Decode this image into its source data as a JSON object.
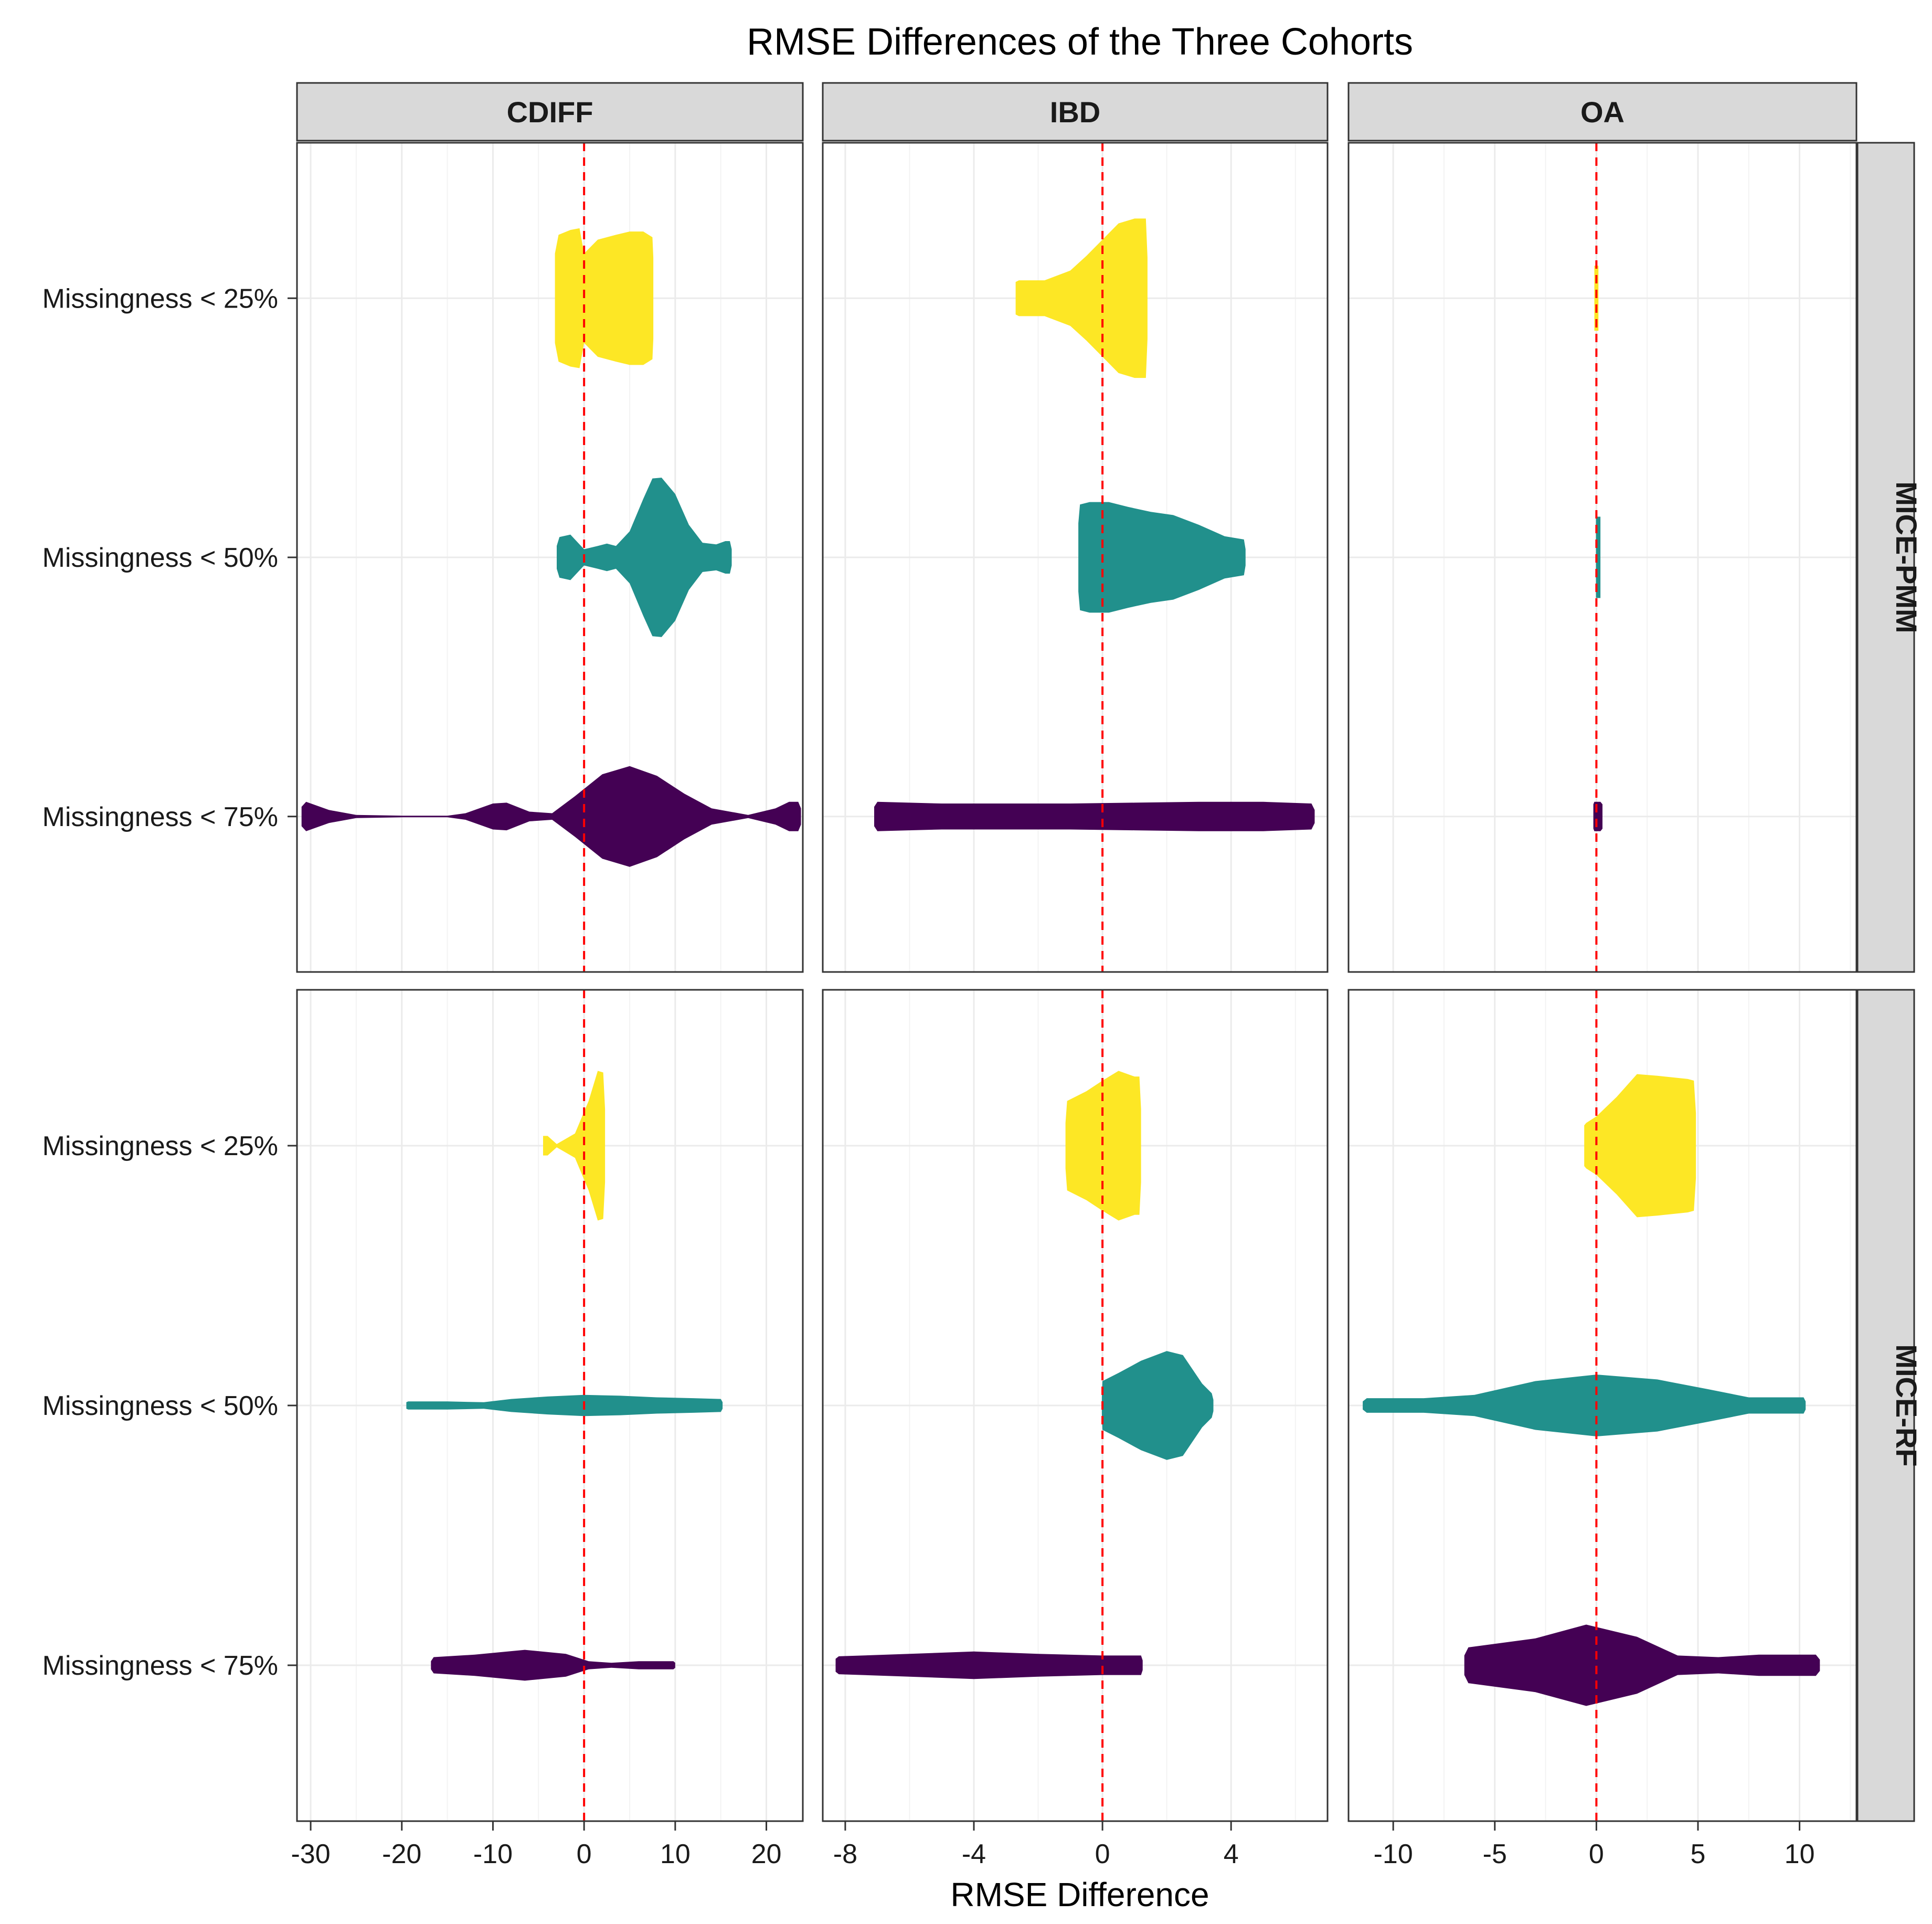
{
  "chart_data": {
    "type": "violin",
    "title": "RMSE Differences of the Three Cohorts",
    "xlabel": "RMSE Difference",
    "ylabel": "",
    "grid": true,
    "legend": "none",
    "reference_line": {
      "x": 0,
      "color": "#FF0000",
      "style": "dashed"
    },
    "categories": [
      "Missingness < 25%",
      "Missingness < 50%",
      "Missingness < 75%"
    ],
    "category_colors": [
      "#FDE725",
      "#21908C",
      "#440154"
    ],
    "col_facets": [
      {
        "name": "CDIFF",
        "xlim": [
          -31.5,
          24
        ],
        "ticks": [
          -30,
          -20,
          -10,
          0,
          10,
          20
        ],
        "tick_labels": [
          "-30",
          "-20",
          "-10",
          "0",
          "10",
          "20"
        ]
      },
      {
        "name": "IBD",
        "xlim": [
          -8.7,
          7.0
        ],
        "ticks": [
          -8,
          -4,
          0,
          4
        ],
        "tick_labels": [
          "-8",
          "-4",
          "0",
          "4"
        ]
      },
      {
        "name": "OA",
        "xlim": [
          -12.2,
          12.8
        ],
        "ticks": [
          -10,
          -5,
          0,
          5,
          10
        ],
        "tick_labels": [
          "-10",
          "-5",
          "0",
          "5",
          "10"
        ]
      }
    ],
    "row_facets": [
      "MICE-PMM",
      "MICE-RF"
    ],
    "panels": [
      {
        "row": "MICE-PMM",
        "col": "CDIFF",
        "violins": [
          {
            "category": "Missingness < 25%",
            "profile": [
              [
                -3.2,
                0.55
              ],
              [
                -2.8,
                0.78
              ],
              [
                -1.5,
                0.84
              ],
              [
                -0.5,
                0.86
              ],
              [
                0.0,
                0.55
              ],
              [
                1.5,
                0.72
              ],
              [
                3.5,
                0.78
              ],
              [
                5.0,
                0.82
              ],
              [
                6.5,
                0.82
              ],
              [
                7.5,
                0.75
              ],
              [
                7.6,
                0.5
              ]
            ]
          },
          {
            "category": "Missingness < 50%",
            "profile": [
              [
                -3.0,
                0.14
              ],
              [
                -2.7,
                0.25
              ],
              [
                -1.5,
                0.28
              ],
              [
                0.0,
                0.1
              ],
              [
                1.5,
                0.14
              ],
              [
                2.5,
                0.17
              ],
              [
                3.5,
                0.14
              ],
              [
                5.0,
                0.32
              ],
              [
                6.5,
                0.72
              ],
              [
                7.5,
                0.97
              ],
              [
                8.5,
                0.98
              ],
              [
                10.0,
                0.78
              ],
              [
                11.5,
                0.4
              ],
              [
                13.0,
                0.18
              ],
              [
                14.5,
                0.16
              ],
              [
                15.5,
                0.2
              ],
              [
                16.0,
                0.2
              ],
              [
                16.2,
                0.1
              ]
            ]
          },
          {
            "category": "Missingness < 75%",
            "profile": [
              [
                -31.0,
                0.12
              ],
              [
                -30.5,
                0.18
              ],
              [
                -28.0,
                0.08
              ],
              [
                -25.0,
                0.02
              ],
              [
                -20.0,
                0.01
              ],
              [
                -15.0,
                0.01
              ],
              [
                -13.0,
                0.04
              ],
              [
                -10.0,
                0.16
              ],
              [
                -8.5,
                0.17
              ],
              [
                -6.0,
                0.06
              ],
              [
                -3.5,
                0.04
              ],
              [
                -1.0,
                0.25
              ],
              [
                2.0,
                0.52
              ],
              [
                5.0,
                0.62
              ],
              [
                8.0,
                0.5
              ],
              [
                11.0,
                0.28
              ],
              [
                14.0,
                0.1
              ],
              [
                18.0,
                0.02
              ],
              [
                21.0,
                0.1
              ],
              [
                22.5,
                0.18
              ],
              [
                23.5,
                0.18
              ],
              [
                23.8,
                0.1
              ]
            ]
          }
        ]
      },
      {
        "row": "MICE-PMM",
        "col": "IBD",
        "violins": [
          {
            "category": "Missingness < 25%",
            "profile": [
              [
                -2.7,
                0.2
              ],
              [
                -2.6,
                0.22
              ],
              [
                -1.8,
                0.22
              ],
              [
                -1.0,
                0.34
              ],
              [
                -0.5,
                0.52
              ],
              [
                0.0,
                0.72
              ],
              [
                0.5,
                0.92
              ],
              [
                1.0,
                0.98
              ],
              [
                1.35,
                0.98
              ],
              [
                1.4,
                0.5
              ]
            ]
          },
          {
            "category": "Missingness < 50%",
            "profile": [
              [
                -0.75,
                0.42
              ],
              [
                -0.7,
                0.65
              ],
              [
                -0.4,
                0.68
              ],
              [
                0.2,
                0.68
              ],
              [
                0.8,
                0.62
              ],
              [
                1.5,
                0.56
              ],
              [
                2.2,
                0.52
              ],
              [
                3.0,
                0.4
              ],
              [
                3.8,
                0.26
              ],
              [
                4.4,
                0.22
              ],
              [
                4.45,
                0.1
              ]
            ]
          },
          {
            "category": "Missingness < 75%",
            "profile": [
              [
                -7.1,
                0.12
              ],
              [
                -7.0,
                0.18
              ],
              [
                -5.0,
                0.16
              ],
              [
                -3.0,
                0.16
              ],
              [
                -1.0,
                0.16
              ],
              [
                1.0,
                0.17
              ],
              [
                3.0,
                0.18
              ],
              [
                5.0,
                0.18
              ],
              [
                6.5,
                0.16
              ],
              [
                6.6,
                0.08
              ]
            ]
          }
        ]
      },
      {
        "row": "MICE-PMM",
        "col": "OA",
        "violins": [
          {
            "category": "Missingness < 25%",
            "profile": [
              [
                -0.1,
                0.4
              ],
              [
                0.1,
                0.4
              ]
            ]
          },
          {
            "category": "Missingness < 50%",
            "profile": [
              [
                -0.02,
                0.5
              ],
              [
                0.2,
                0.5
              ]
            ]
          },
          {
            "category": "Missingness < 75%",
            "profile": [
              [
                -0.15,
                0.15
              ],
              [
                -0.1,
                0.18
              ],
              [
                0.2,
                0.18
              ],
              [
                0.3,
                0.15
              ]
            ]
          }
        ]
      },
      {
        "row": "MICE-RF",
        "col": "CDIFF",
        "violins": [
          {
            "category": "Missingness < 25%",
            "profile": [
              [
                -4.5,
                0.12
              ],
              [
                -4.0,
                0.12
              ],
              [
                -3.0,
                0.02
              ],
              [
                -1.0,
                0.15
              ],
              [
                0.5,
                0.55
              ],
              [
                1.5,
                0.92
              ],
              [
                2.1,
                0.9
              ],
              [
                2.3,
                0.45
              ]
            ]
          },
          {
            "category": "Missingness < 50%",
            "profile": [
              [
                -19.5,
                0.04
              ],
              [
                -19.3,
                0.05
              ],
              [
                -15.0,
                0.05
              ],
              [
                -11.0,
                0.04
              ],
              [
                -8.0,
                0.08
              ],
              [
                -4.0,
                0.11
              ],
              [
                0.0,
                0.13
              ],
              [
                4.0,
                0.12
              ],
              [
                8.0,
                0.1
              ],
              [
                12.0,
                0.09
              ],
              [
                15.0,
                0.08
              ],
              [
                15.2,
                0.04
              ]
            ]
          },
          {
            "category": "Missingness < 75%",
            "profile": [
              [
                -16.8,
                0.05
              ],
              [
                -16.5,
                0.1
              ],
              [
                -12.0,
                0.13
              ],
              [
                -6.5,
                0.19
              ],
              [
                -2.0,
                0.14
              ],
              [
                0.5,
                0.05
              ],
              [
                3.0,
                0.03
              ],
              [
                6.0,
                0.05
              ],
              [
                9.8,
                0.05
              ],
              [
                10.0,
                0.03
              ]
            ]
          }
        ]
      },
      {
        "row": "MICE-RF",
        "col": "IBD",
        "violins": [
          {
            "category": "Missingness < 25%",
            "profile": [
              [
                -1.15,
                0.28
              ],
              [
                -1.1,
                0.55
              ],
              [
                -0.5,
                0.67
              ],
              [
                0.0,
                0.8
              ],
              [
                0.5,
                0.92
              ],
              [
                1.0,
                0.85
              ],
              [
                1.15,
                0.85
              ],
              [
                1.2,
                0.45
              ]
            ]
          },
          {
            "category": "Missingness < 50%",
            "profile": [
              [
                -0.02,
                0.1
              ],
              [
                0.0,
                0.3
              ],
              [
                0.5,
                0.4
              ],
              [
                1.2,
                0.55
              ],
              [
                2.0,
                0.67
              ],
              [
                2.5,
                0.62
              ],
              [
                3.1,
                0.27
              ],
              [
                3.4,
                0.15
              ],
              [
                3.45,
                0.07
              ]
            ]
          },
          {
            "category": "Missingness < 75%",
            "profile": [
              [
                -8.3,
                0.08
              ],
              [
                -8.2,
                0.11
              ],
              [
                -6.0,
                0.14
              ],
              [
                -4.0,
                0.17
              ],
              [
                -2.0,
                0.14
              ],
              [
                0.0,
                0.12
              ],
              [
                1.2,
                0.12
              ],
              [
                1.25,
                0.06
              ]
            ]
          }
        ]
      },
      {
        "row": "MICE-RF",
        "col": "OA",
        "violins": [
          {
            "category": "Missingness < 25%",
            "profile": [
              [
                -0.6,
                0.25
              ],
              [
                -0.5,
                0.28
              ],
              [
                0.0,
                0.36
              ],
              [
                1.0,
                0.6
              ],
              [
                2.0,
                0.88
              ],
              [
                3.0,
                0.86
              ],
              [
                4.5,
                0.82
              ],
              [
                4.8,
                0.8
              ],
              [
                4.9,
                0.4
              ]
            ]
          },
          {
            "category": "Missingness < 50%",
            "profile": [
              [
                -11.5,
                0.05
              ],
              [
                -11.3,
                0.09
              ],
              [
                -8.5,
                0.09
              ],
              [
                -6.0,
                0.13
              ],
              [
                -3.0,
                0.3
              ],
              [
                0.0,
                0.38
              ],
              [
                3.0,
                0.32
              ],
              [
                5.5,
                0.2
              ],
              [
                7.5,
                0.1
              ],
              [
                10.2,
                0.1
              ],
              [
                10.3,
                0.05
              ]
            ]
          },
          {
            "category": "Missingness < 75%",
            "profile": [
              [
                -6.5,
                0.12
              ],
              [
                -6.3,
                0.22
              ],
              [
                -3.0,
                0.33
              ],
              [
                -0.5,
                0.5
              ],
              [
                2.0,
                0.35
              ],
              [
                4.0,
                0.12
              ],
              [
                6.0,
                0.1
              ],
              [
                8.0,
                0.13
              ],
              [
                10.8,
                0.13
              ],
              [
                11.0,
                0.07
              ]
            ]
          }
        ]
      }
    ]
  }
}
